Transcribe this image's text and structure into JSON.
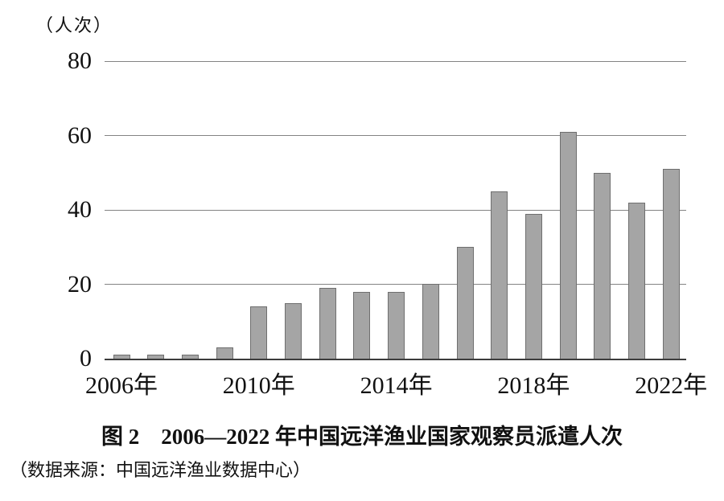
{
  "figure": {
    "unit_label": "（人次）",
    "caption": "图 2　2006—2022 年中国远洋渔业国家观察员派遣人次",
    "source_note": "（数据来源：中国远洋渔业数据中心）"
  },
  "chart_data": {
    "type": "bar",
    "title": "图 2　2006—2022 年中国远洋渔业国家观察员派遣人次",
    "ylabel": "（人次）",
    "xlabel": "",
    "categories": [
      "2006年",
      "2007年",
      "2008年",
      "2009年",
      "2010年",
      "2011年",
      "2012年",
      "2013年",
      "2014年",
      "2015年",
      "2016年",
      "2017年",
      "2018年",
      "2019年",
      "2020年",
      "2021年",
      "2022年"
    ],
    "values": [
      1,
      1,
      1,
      3,
      14,
      15,
      19,
      18,
      18,
      20,
      30,
      45,
      39,
      61,
      50,
      42,
      51
    ],
    "ylim": [
      0,
      80
    ],
    "yticks": [
      0,
      20,
      40,
      60,
      80
    ],
    "xticks": [
      {
        "index": 0,
        "label": "2006年"
      },
      {
        "index": 4,
        "label": "2010年"
      },
      {
        "index": 8,
        "label": "2014年"
      },
      {
        "index": 12,
        "label": "2018年"
      },
      {
        "index": 16,
        "label": "2022年"
      }
    ],
    "grid": true,
    "legend": "none",
    "colors": {
      "bar_fill": "#a5a5a5",
      "bar_border": "#6f6f6f",
      "gridline": "#848484",
      "axis_line": "#3c3c3c",
      "text": "#111111"
    }
  }
}
